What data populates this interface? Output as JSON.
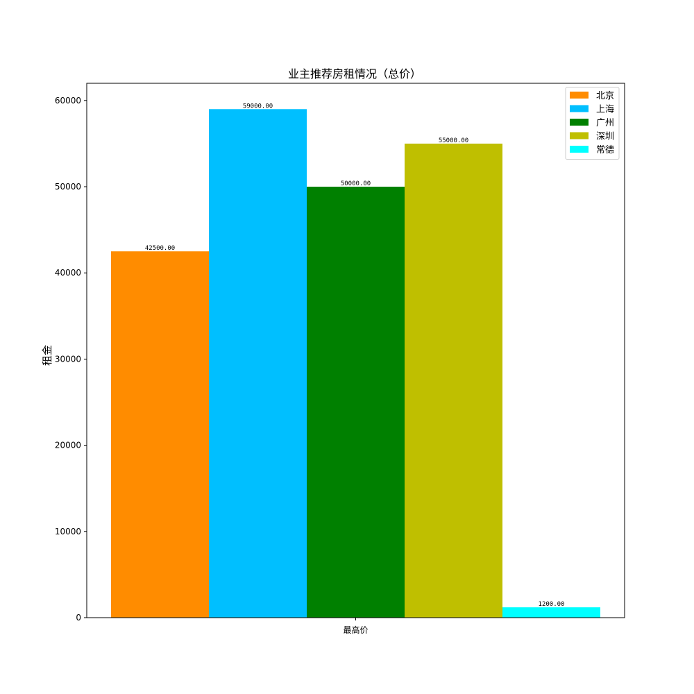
{
  "chart_data": {
    "type": "bar",
    "title": "业主推荐房租情况（总价）",
    "xlabel": "",
    "ylabel": "租金",
    "categories": [
      "最高价"
    ],
    "series": [
      {
        "name": "北京",
        "values": [
          42500
        ],
        "color": "#ff8c00",
        "label": "42500.00"
      },
      {
        "name": "上海",
        "values": [
          59000
        ],
        "color": "#00bfff",
        "label": "59000.00"
      },
      {
        "name": "广州",
        "values": [
          50000
        ],
        "color": "#008000",
        "label": "50000.00"
      },
      {
        "name": "深圳",
        "values": [
          55000
        ],
        "color": "#bfbf00",
        "label": "55000.00"
      },
      {
        "name": "常德",
        "values": [
          1200
        ],
        "color": "#00ffff",
        "label": "1200.00"
      }
    ],
    "ylim": [
      0,
      62000
    ],
    "yticks": [
      0,
      10000,
      20000,
      30000,
      40000,
      50000,
      60000
    ],
    "yticklabels": [
      "0",
      "10000",
      "20000",
      "30000",
      "40000",
      "50000",
      "60000"
    ],
    "grid": false,
    "legend_position": "top-right"
  }
}
